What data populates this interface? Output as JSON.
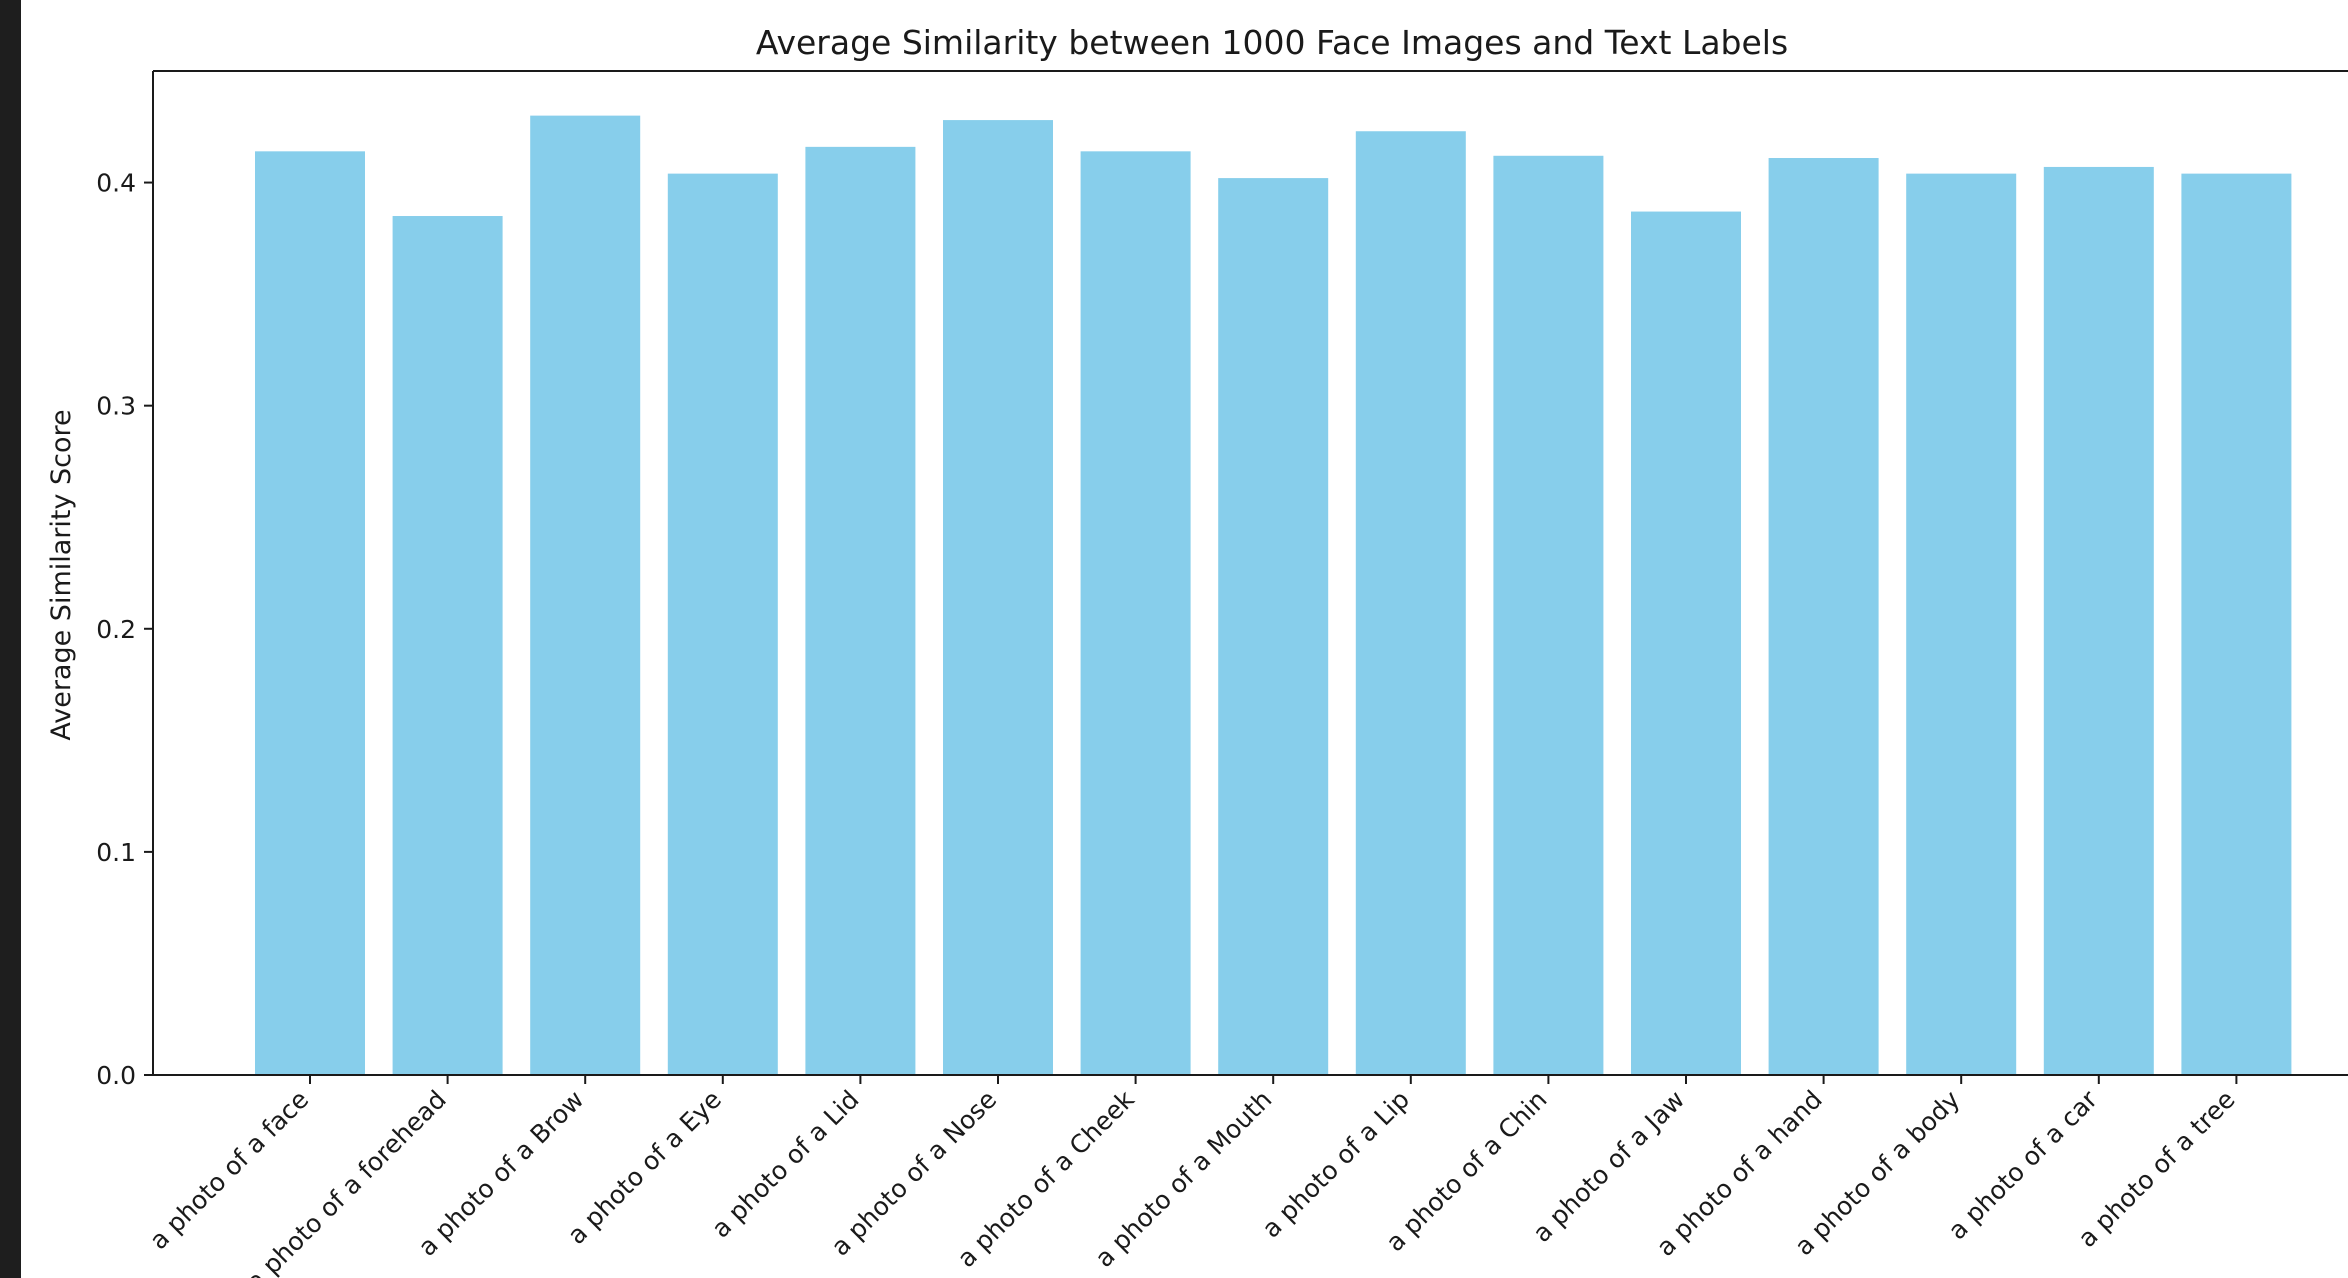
{
  "chart_data": {
    "type": "bar",
    "title": "Average Similarity between 1000 Face Images and Text Labels",
    "xlabel": "",
    "ylabel": "Average Similarity Score",
    "categories": [
      "a photo of a face",
      "a photo of a forehead",
      "a photo of a Brow",
      "a photo of a Eye",
      "a photo of a Lid",
      "a photo of a Nose",
      "a photo of a Cheek",
      "a photo of a Mouth",
      "a photo of a Lip",
      "a photo of a Chin",
      "a photo of a Jaw",
      "a photo of a hand",
      "a photo of a body",
      "a photo of a car",
      "a photo of a tree"
    ],
    "values": [
      0.414,
      0.385,
      0.43,
      0.404,
      0.416,
      0.428,
      0.414,
      0.402,
      0.423,
      0.412,
      0.387,
      0.411,
      0.404,
      0.407,
      0.404
    ],
    "ylim": [
      0,
      0.45
    ],
    "yticks": [
      0.0,
      0.1,
      0.2,
      0.3,
      0.4
    ],
    "ytick_labels": [
      "0.0",
      "0.1",
      "0.2",
      "0.3",
      "0.4"
    ],
    "bar_color": "#87CEEB",
    "grid": false,
    "legend": "none"
  }
}
